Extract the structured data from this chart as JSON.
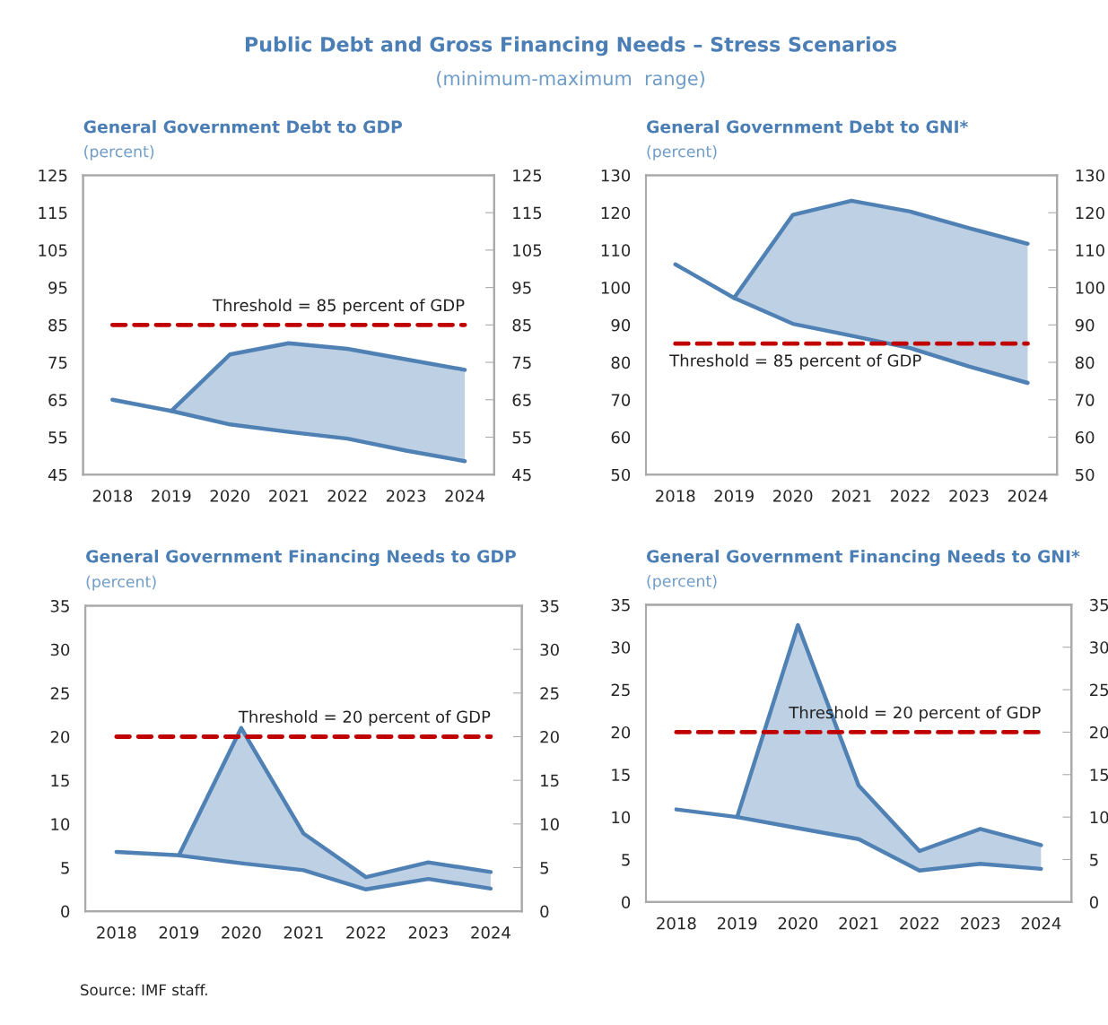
{
  "chart_data": [
    {
      "type": "other",
      "title": "Public Debt and Gross Financing Needs – Stress Scenarios",
      "subtitle": "(minimum-maximum  range)",
      "annotations": [
        "Source: IMF staff."
      ]
    },
    {
      "type": "line",
      "title": "General Government Debt to GDP",
      "subtitle": "(percent)",
      "categories": [
        "2018",
        "2019",
        "2020",
        "2021",
        "2022",
        "2023",
        "2024"
      ],
      "series": [
        {
          "color": "#4f81b4",
          "values": [
            65,
            62,
            58.4,
            56.4,
            54.6,
            51.4,
            48.6
          ]
        },
        {
          "color": "#4f81b4",
          "values": [
            null,
            62,
            77.1,
            80.1,
            78.6,
            75.8,
            73.0
          ],
          "lower": [
            null,
            62,
            58.4,
            56.4,
            54.6,
            51.4,
            48.6
          ],
          "upper": [
            null,
            62,
            77.1,
            80.1,
            78.6,
            75.8,
            73.0
          ]
        }
      ],
      "ylim": [
        45,
        125
      ],
      "yticks": [
        45,
        55,
        65,
        75,
        85,
        95,
        105,
        115,
        125
      ],
      "y2lim": [
        45,
        125
      ],
      "y2ticks": [
        45,
        55,
        65,
        75,
        85,
        95,
        105,
        115,
        125
      ],
      "ref_lines": [
        {
          "axis": "y",
          "value": 85,
          "label": "Threshold = 85 percent of GDP",
          "color": "#c00000",
          "line_style": "dashed"
        }
      ],
      "grid": false,
      "legend": false
    },
    {
      "type": "line",
      "title": "General Government Debt to GNI*",
      "subtitle": "(percent)",
      "categories": [
        "2018",
        "2019",
        "2020",
        "2021",
        "2022",
        "2023",
        "2024"
      ],
      "series": [
        {
          "color": "#4f81b4",
          "values": [
            106.2,
            97.2,
            90.3,
            87.1,
            83.8,
            78.9,
            74.5
          ]
        },
        {
          "color": "#4f81b4",
          "values": [
            null,
            97.2,
            119.4,
            123.2,
            120.3,
            115.9,
            111.7
          ],
          "lower": [
            null,
            97.2,
            90.3,
            87.1,
            83.8,
            78.9,
            74.5
          ],
          "upper": [
            null,
            97.2,
            119.4,
            123.2,
            120.3,
            115.9,
            111.7
          ]
        }
      ],
      "ylim": [
        50,
        130
      ],
      "yticks": [
        50,
        60,
        70,
        80,
        90,
        100,
        110,
        120,
        130
      ],
      "y2lim": [
        50,
        130
      ],
      "y2ticks": [
        50,
        60,
        70,
        80,
        90,
        100,
        110,
        120,
        130
      ],
      "ref_lines": [
        {
          "axis": "y",
          "value": 85,
          "label": "Threshold = 85 percent of GDP",
          "color": "#c00000",
          "line_style": "dashed"
        }
      ],
      "grid": false,
      "legend": false
    },
    {
      "type": "line",
      "title": "General Government Financing Needs to GDP",
      "subtitle": "(percent)",
      "categories": [
        "2018",
        "2019",
        "2020",
        "2021",
        "2022",
        "2023",
        "2024"
      ],
      "series": [
        {
          "color": "#4f81b4",
          "values": [
            6.8,
            6.4,
            5.5,
            4.7,
            2.5,
            3.7,
            2.6
          ]
        },
        {
          "color": "#4f81b4",
          "values": [
            null,
            6.4,
            21.0,
            8.9,
            3.9,
            5.6,
            4.5
          ],
          "lower": [
            null,
            6.4,
            5.5,
            4.7,
            2.5,
            3.7,
            2.6
          ],
          "upper": [
            null,
            6.4,
            21.0,
            8.9,
            3.9,
            5.6,
            4.5
          ]
        }
      ],
      "ylim": [
        0,
        35
      ],
      "yticks": [
        0,
        5,
        10,
        15,
        20,
        25,
        30,
        35
      ],
      "y2lim": [
        0,
        35
      ],
      "y2ticks": [
        0,
        5,
        10,
        15,
        20,
        25,
        30,
        35
      ],
      "ref_lines": [
        {
          "axis": "y",
          "value": 20,
          "label": "Threshold = 20 percent of GDP",
          "color": "#c00000",
          "line_style": "dashed"
        }
      ],
      "grid": false,
      "legend": false
    },
    {
      "type": "line",
      "title": "General Government Financing Needs to GNI*",
      "subtitle": "(percent)",
      "categories": [
        "2018",
        "2019",
        "2020",
        "2021",
        "2022",
        "2023",
        "2024"
      ],
      "series": [
        {
          "color": "#4f81b4",
          "values": [
            10.9,
            10.0,
            8.7,
            7.4,
            3.7,
            4.5,
            3.9
          ]
        },
        {
          "color": "#4f81b4",
          "values": [
            null,
            10.0,
            32.6,
            13.7,
            6.0,
            8.6,
            6.7
          ],
          "lower": [
            null,
            10.0,
            8.7,
            7.4,
            3.7,
            4.5,
            3.9
          ],
          "upper": [
            null,
            10.0,
            32.6,
            13.7,
            6.0,
            8.6,
            6.7
          ]
        }
      ],
      "ylim": [
        0,
        35
      ],
      "yticks": [
        0,
        5,
        10,
        15,
        20,
        25,
        30,
        35
      ],
      "y2lim": [
        0,
        35
      ],
      "y2ticks": [
        0,
        5,
        10,
        15,
        20,
        25,
        30,
        35
      ],
      "ref_lines": [
        {
          "axis": "y",
          "value": 20,
          "label": "Threshold = 20 percent of GDP",
          "color": "#c00000",
          "line_style": "dashed"
        }
      ],
      "grid": false,
      "legend": false
    }
  ]
}
